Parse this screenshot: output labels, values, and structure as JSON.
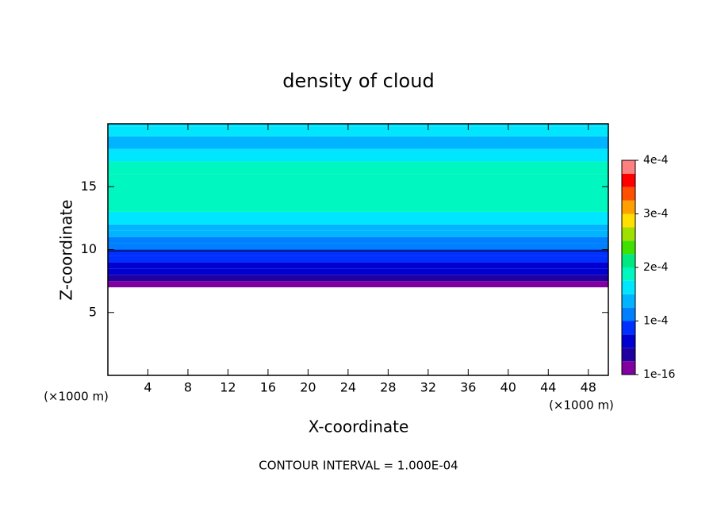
{
  "chart_data": {
    "type": "contour",
    "title": "density of cloud",
    "xlabel": "X-coordinate",
    "ylabel": "Z-coordinate",
    "x_unit_left": "(×1000 m)",
    "x_unit_right": "(×1000 m)",
    "footnote": "CONTOUR INTERVAL = 1.000E-04",
    "xlim": [
      0,
      50
    ],
    "xticks": [
      4,
      8,
      12,
      16,
      20,
      24,
      28,
      32,
      36,
      40,
      44,
      48
    ],
    "ylim": [
      0,
      20
    ],
    "yticks": [
      5,
      10,
      15
    ],
    "profile": {
      "z": [
        7,
        7.5,
        8,
        8.5,
        9,
        9.5,
        10,
        10.5,
        11,
        11.5,
        12,
        13,
        16,
        17,
        18,
        19,
        19.8
      ],
      "density": [
        1e-05,
        3e-05,
        5e-05,
        6e-05,
        8e-05,
        9e-05,
        0.0001,
        0.00012,
        0.00013,
        0.00015,
        0.00016,
        0.00018,
        0.00018,
        0.00016,
        0.00014,
        0.00016,
        0.00016
      ]
    },
    "contour_line": {
      "level": 0.0001,
      "z": 9.9,
      "color": "#000000"
    },
    "colorbar": {
      "lim": [
        0,
        0.0004
      ],
      "ticks": [
        {
          "value": 1e-16,
          "label": "1e-16"
        },
        {
          "value": 0.0001,
          "label": "1e-4"
        },
        {
          "value": 0.0002,
          "label": "2e-4"
        },
        {
          "value": 0.0003,
          "label": "3e-4"
        },
        {
          "value": 0.0004,
          "label": "4e-4"
        }
      ],
      "colors": [
        "#8000a0",
        "#2000a0",
        "#0000d0",
        "#0030ff",
        "#0080ff",
        "#00b4ff",
        "#00e6ff",
        "#00f8c0",
        "#00e880",
        "#40e000",
        "#a0e000",
        "#ffe000",
        "#ffa000",
        "#ff5000",
        "#ff0000",
        "#ff8080"
      ]
    }
  }
}
